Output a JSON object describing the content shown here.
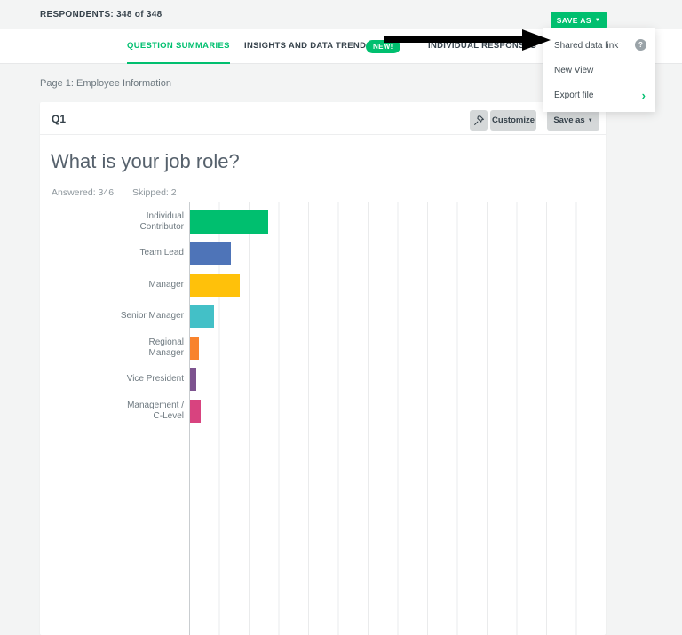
{
  "topbar": {
    "respondents": "RESPONDENTS: 348 of 348",
    "save_as": {
      "label": "SAVE AS",
      "caret": "▼"
    }
  },
  "nav": {
    "tabs": [
      {
        "label": "QUESTION SUMMARIES",
        "active": true
      },
      {
        "label": "INSIGHTS AND DATA TRENDS",
        "active": false
      },
      {
        "label": "INDIVIDUAL RESPONSES",
        "active": false
      }
    ],
    "new_badge": "NEW!"
  },
  "save_as_menu": {
    "items": [
      {
        "label": "Shared data link",
        "trailing": "help"
      },
      {
        "label": "New View",
        "trailing": ""
      },
      {
        "label": "Export file",
        "trailing": "chevron"
      }
    ],
    "help_glyph": "?",
    "chevron_glyph": "›"
  },
  "page": {
    "section_label": "Page 1: Employee Information"
  },
  "question_card": {
    "id": "Q1",
    "toolbar": {
      "customize": "Customize",
      "save_as": "Save as",
      "caret": "▼"
    },
    "title": "What is your job role?",
    "answered": "Answered: 346",
    "skipped": "Skipped: 2"
  },
  "chart_data": {
    "type": "bar",
    "orientation": "horizontal",
    "title": "What is your job role?",
    "answered": 346,
    "skipped": 2,
    "categories": [
      "Individual Contributor",
      "Team Lead",
      "Manager",
      "Senior Manager",
      "Regional Manager",
      "Vice President",
      "Management / C-Level"
    ],
    "categories_display": [
      [
        "Individual",
        "Contributor"
      ],
      [
        "Team Lead"
      ],
      [
        "Manager"
      ],
      [
        "Senior Manager"
      ],
      [
        "Regional",
        "Manager"
      ],
      [
        "Vice President"
      ],
      [
        "Management /",
        "C-Level"
      ]
    ],
    "values_pct_est": [
      36,
      19,
      23,
      11,
      4,
      3,
      5
    ],
    "axis_visible_max_pct": 192,
    "bar_colors": [
      "#00BF6F",
      "#4E74B8",
      "#FFC10A",
      "#43C0C7",
      "#F9832D",
      "#7D538F",
      "#D8437F"
    ],
    "xlabel": "",
    "ylabel": "",
    "gridlines": true,
    "tick_labels_visible": false,
    "legend": "none"
  },
  "colors": {
    "brand_green": "#00BF6F",
    "page_bg": "#F3F4F4",
    "arrow_black": "#000000"
  }
}
